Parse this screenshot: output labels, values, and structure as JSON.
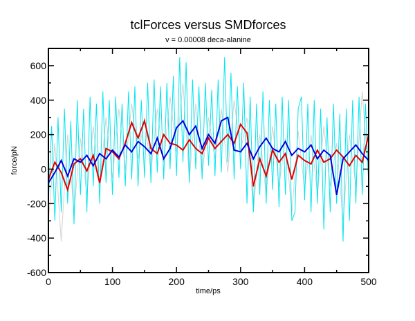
{
  "chart_data": {
    "type": "line",
    "title": "tclForces versus SMDforces",
    "subtitle": "v = 0.00008 deca-alanine",
    "xlabel": "time/ps",
    "ylabel": "force/pN",
    "xlim": [
      0,
      500
    ],
    "ylim": [
      -600,
      700
    ],
    "xticks": [
      0,
      100,
      200,
      300,
      400,
      500
    ],
    "yticks": [
      -600,
      -400,
      -200,
      0,
      200,
      400,
      600
    ],
    "grid": false,
    "legend": "none",
    "series": [
      {
        "color": "#d3d3d3",
        "x": [
          0,
          10,
          20,
          30,
          40,
          50,
          60,
          70,
          80,
          90,
          100,
          110,
          120,
          130,
          140,
          150,
          160,
          170,
          180,
          190,
          200,
          210,
          220,
          230,
          240,
          250,
          260,
          270,
          280,
          290,
          300,
          310,
          320,
          330,
          340,
          350,
          360,
          370,
          380,
          390,
          400,
          410,
          420,
          430,
          440,
          450,
          460,
          470,
          480,
          490,
          500
        ],
        "y": [
          -300,
          150,
          -420,
          200,
          -250,
          180,
          -150,
          250,
          -100,
          300,
          -50,
          350,
          0,
          380,
          60,
          300,
          -20,
          350,
          40,
          420,
          100,
          500,
          -60,
          380,
          -30,
          300,
          60,
          350,
          -20,
          400,
          100,
          300,
          -250,
          200,
          -150,
          250,
          -100,
          180,
          -260,
          220,
          -120,
          200,
          -150,
          250,
          -100,
          150,
          -300,
          200,
          -100,
          450,
          -50
        ]
      },
      {
        "color": "#00e5ee",
        "x": [
          0,
          5,
          10,
          15,
          20,
          25,
          30,
          35,
          40,
          45,
          50,
          55,
          60,
          65,
          70,
          75,
          80,
          85,
          90,
          95,
          100,
          105,
          110,
          115,
          120,
          125,
          130,
          135,
          140,
          145,
          150,
          155,
          160,
          165,
          170,
          175,
          180,
          185,
          190,
          195,
          200,
          205,
          210,
          215,
          220,
          225,
          230,
          235,
          240,
          245,
          250,
          255,
          260,
          265,
          270,
          275,
          280,
          285,
          290,
          295,
          300,
          305,
          310,
          315,
          320,
          325,
          330,
          335,
          340,
          345,
          350,
          355,
          360,
          365,
          370,
          375,
          380,
          390,
          385,
          395,
          400,
          405,
          410,
          415,
          420,
          425,
          430,
          435,
          440,
          445,
          450,
          455,
          460,
          465,
          470,
          475,
          480,
          485,
          490,
          495,
          500
        ],
        "y": [
          -200,
          250,
          -300,
          300,
          -250,
          350,
          -200,
          280,
          -320,
          400,
          -150,
          350,
          -250,
          420,
          -100,
          380,
          -200,
          450,
          -80,
          400,
          -150,
          420,
          -50,
          380,
          -100,
          450,
          -60,
          480,
          -100,
          400,
          -50,
          500,
          -80,
          520,
          -20,
          480,
          -60,
          500,
          0,
          540,
          -40,
          650,
          40,
          620,
          -80,
          520,
          0,
          480,
          -60,
          500,
          20,
          460,
          -40,
          520,
          -20,
          650,
          40,
          560,
          -60,
          480,
          0,
          500,
          -200,
          420,
          -250,
          380,
          -150,
          450,
          -200,
          400,
          -120,
          380,
          -220,
          420,
          -150,
          400,
          -300,
          350,
          -250,
          420,
          -180,
          380,
          -250,
          400,
          -200,
          350,
          -350,
          300,
          -250,
          380,
          -200,
          320,
          -420,
          350,
          -300,
          400,
          -200,
          420,
          -150,
          380,
          -100
        ]
      },
      {
        "color": "#e00000",
        "x": [
          0,
          10,
          20,
          30,
          40,
          50,
          60,
          70,
          80,
          90,
          100,
          110,
          120,
          130,
          140,
          150,
          160,
          170,
          180,
          190,
          200,
          210,
          220,
          230,
          240,
          250,
          260,
          270,
          280,
          290,
          300,
          310,
          320,
          330,
          340,
          350,
          360,
          370,
          380,
          390,
          400,
          410,
          420,
          430,
          440,
          450,
          460,
          470,
          480,
          490,
          500
        ],
        "y": [
          -60,
          40,
          -20,
          -120,
          30,
          60,
          -10,
          80,
          -80,
          120,
          100,
          60,
          150,
          270,
          180,
          280,
          120,
          90,
          200,
          150,
          140,
          110,
          170,
          120,
          90,
          180,
          120,
          160,
          200,
          150,
          260,
          210,
          -100,
          60,
          -40,
          110,
          40,
          90,
          -60,
          80,
          50,
          30,
          110,
          40,
          60,
          110,
          70,
          20,
          80,
          40,
          200
        ]
      },
      {
        "color": "#0000e0",
        "x": [
          0,
          10,
          20,
          30,
          40,
          50,
          60,
          70,
          80,
          90,
          100,
          110,
          120,
          130,
          140,
          150,
          160,
          170,
          180,
          190,
          200,
          210,
          220,
          230,
          240,
          250,
          260,
          270,
          280,
          290,
          300,
          310,
          320,
          330,
          340,
          350,
          360,
          370,
          380,
          390,
          400,
          410,
          420,
          430,
          440,
          450,
          460,
          470,
          480,
          490,
          500
        ],
        "y": [
          -80,
          -20,
          50,
          -40,
          60,
          40,
          80,
          20,
          90,
          60,
          110,
          70,
          140,
          100,
          160,
          130,
          90,
          180,
          60,
          120,
          240,
          280,
          200,
          250,
          120,
          200,
          150,
          280,
          300,
          110,
          100,
          150,
          60,
          130,
          180,
          120,
          100,
          160,
          80,
          120,
          100,
          140,
          60,
          110,
          80,
          -150,
          60,
          100,
          140,
          90,
          50
        ]
      }
    ]
  }
}
